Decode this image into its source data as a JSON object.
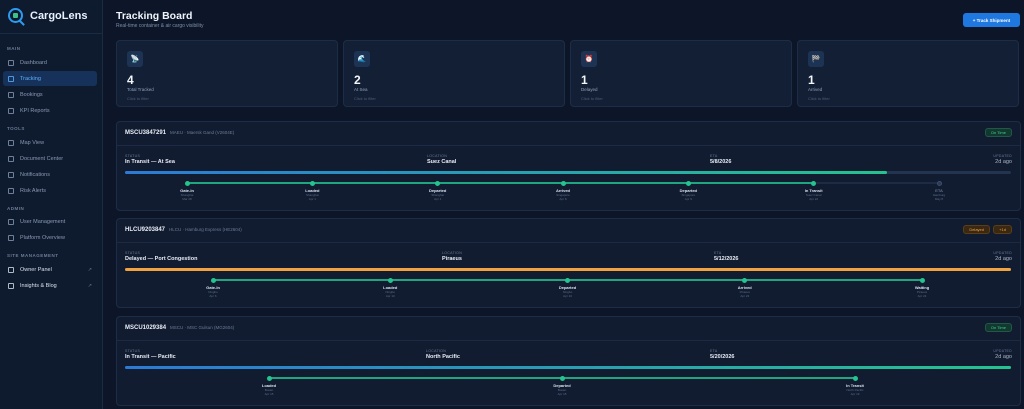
{
  "app": {
    "name": "CargoLens"
  },
  "sidebar": {
    "sections": [
      "MAIN",
      "TOOLS",
      "ADMIN",
      "SITE MANAGEMENT"
    ],
    "main_items": [
      {
        "label": "Dashboard",
        "icon": "grid-icon"
      },
      {
        "label": "Tracking",
        "icon": "radar-icon",
        "active": true
      },
      {
        "label": "Bookings",
        "icon": "clipboard-icon"
      },
      {
        "label": "KPI Reports",
        "icon": "chart-icon"
      }
    ],
    "tools_items": [
      {
        "label": "Map View",
        "icon": "map-icon"
      },
      {
        "label": "Document Center",
        "icon": "folder-icon"
      },
      {
        "label": "Notifications",
        "icon": "bell-icon"
      },
      {
        "label": "Risk Alerts",
        "icon": "warning-icon"
      }
    ],
    "admin_items": [
      {
        "label": "User Management",
        "icon": "users-icon"
      },
      {
        "label": "Platform Overview",
        "icon": "globe-icon"
      }
    ],
    "site_items": [
      {
        "label": "Owner Panel",
        "icon": "panel-icon"
      },
      {
        "label": "Insights & Blog",
        "icon": "book-icon"
      }
    ]
  },
  "header": {
    "title": "Tracking Board",
    "subtitle": "Real-time container & air cargo visibility",
    "button": "+ Track Shipment"
  },
  "stats": [
    {
      "value": "4",
      "label": "Total Tracked",
      "hint": "Click to filter",
      "icon": "satellite-icon"
    },
    {
      "value": "2",
      "label": "At Sea",
      "hint": "Click to filter",
      "icon": "ship-icon"
    },
    {
      "value": "1",
      "label": "Delayed",
      "hint": "Click to filter",
      "icon": "clock-icon"
    },
    {
      "value": "1",
      "label": "Arrived",
      "hint": "Click to filter",
      "icon": "flag-icon"
    }
  ],
  "colors": {
    "accent": "#1e78e0",
    "ok": "#25c38e",
    "delayed": "#f0a340",
    "at_sea": "#2d7ad6"
  },
  "field_labels": {
    "status": "STATUS",
    "location": "LOCATION",
    "eta": "ETA",
    "updated": "UPDATED"
  },
  "shipments": [
    {
      "id": "MSCU3847291",
      "vessel": "MAEU · Maersk Gand (V2604E)",
      "badge": "On Time",
      "delay": "",
      "status": "In Transit — At Sea",
      "location": "Suez Canal",
      "eta": "5/8/2026",
      "updated": "2d ago",
      "progress": 0.86,
      "bar_color": "gradient",
      "milestones": [
        {
          "label": "Gate-In",
          "place": "Shanghai",
          "date": "Mar 28",
          "done": true
        },
        {
          "label": "Loaded",
          "place": "Shanghai",
          "date": "Apr 1",
          "done": true
        },
        {
          "label": "Departed",
          "place": "Shanghai",
          "date": "Apr 1",
          "done": true
        },
        {
          "label": "Arrived",
          "place": "Singapore",
          "date": "Apr 8",
          "done": true
        },
        {
          "label": "Departed",
          "place": "Singapore",
          "date": "Apr 9",
          "done": true
        },
        {
          "label": "In Transit",
          "place": "Suez Canal",
          "date": "Apr 22",
          "done": true
        },
        {
          "label": "ETA",
          "place": "Hamburg",
          "date": "May 8",
          "done": false
        }
      ]
    },
    {
      "id": "HLCU9203847",
      "vessel": "HLCU · Hamburg Express (HE2604)",
      "badge": "Delayed",
      "delay": "+1d",
      "status": "Delayed — Port Congestion",
      "location": "Piraeus",
      "eta": "5/12/2026",
      "updated": "2d ago",
      "progress": 1.0,
      "bar_color": "orange",
      "milestones": [
        {
          "label": "Gate-In",
          "place": "Ningbo",
          "date": "Apr 6",
          "done": true
        },
        {
          "label": "Loaded",
          "place": "Ningbo",
          "date": "Apr 10",
          "done": true
        },
        {
          "label": "Departed",
          "place": "Ningbo",
          "date": "Apr 10",
          "done": true
        },
        {
          "label": "Arrived",
          "place": "Piraeus",
          "date": "Apr 24",
          "done": true
        },
        {
          "label": "Waiting",
          "place": "Piraeus",
          "date": "Apr 24",
          "done": true
        }
      ]
    },
    {
      "id": "MSCU1029384",
      "vessel": "MSCU · MSC Gulsun (MG2604)",
      "badge": "On Time",
      "delay": "",
      "status": "In Transit — Pacific",
      "location": "North Pacific",
      "eta": "5/20/2026",
      "updated": "2d ago",
      "progress": 1.0,
      "bar_color": "gradient",
      "milestones": [
        {
          "label": "Loaded",
          "place": "Busan",
          "date": "Apr 15",
          "done": true
        },
        {
          "label": "Departed",
          "place": "Busan",
          "date": "Apr 15",
          "done": true
        },
        {
          "label": "In Transit",
          "place": "North Pacific",
          "date": "Apr 19",
          "done": true
        }
      ]
    }
  ]
}
